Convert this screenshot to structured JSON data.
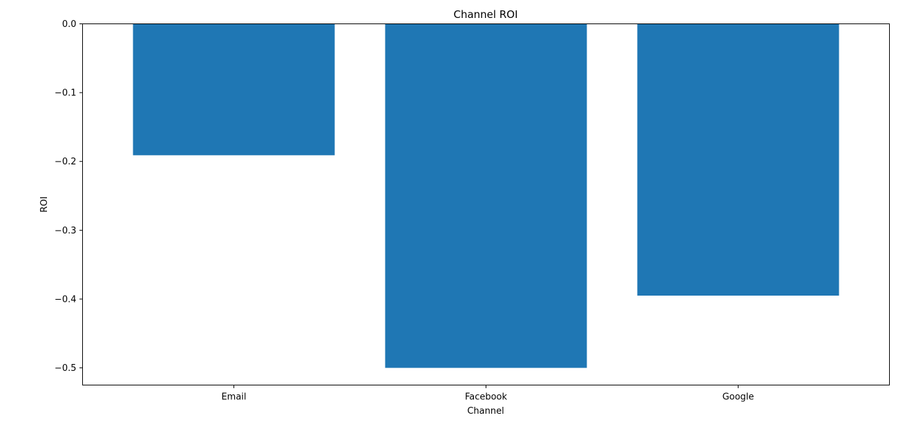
{
  "chart_data": {
    "type": "bar",
    "title": "Channel ROI",
    "xlabel": "Channel",
    "ylabel": "ROI",
    "categories": [
      "Email",
      "Facebook",
      "Google"
    ],
    "values": [
      -0.191,
      -0.5,
      -0.395
    ],
    "ylim": [
      -0.525,
      0.0
    ],
    "yticks": [
      0.0,
      -0.1,
      -0.2,
      -0.3,
      -0.4,
      -0.5
    ],
    "ytick_labels": [
      "0.0",
      "−0.1",
      "−0.2",
      "−0.3",
      "−0.4",
      "−0.5"
    ],
    "grid": false,
    "bar_color": "#1f77b4",
    "axis_color": "#000000"
  }
}
